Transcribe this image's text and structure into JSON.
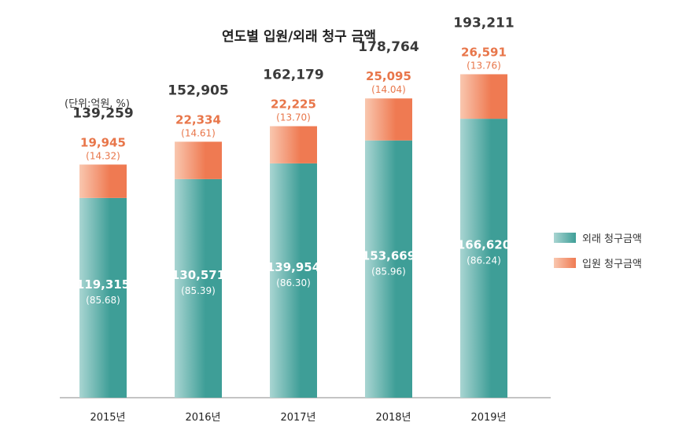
{
  "title": "연도별 입원/외래 청구 금액",
  "unit_note": "(단위:억원, %)",
  "colors": {
    "outpatient": "#3e9e97",
    "outpatient_light": "#a9d5d2",
    "inpatient": "#ef7a52",
    "inpatient_light": "#f9c7af",
    "total_text": "#3a3a3a",
    "inpatient_text": "#e8764a",
    "axis": "#888888"
  },
  "chart_data": {
    "type": "bar",
    "stacked": true,
    "categories": [
      "2015년",
      "2016년",
      "2017년",
      "2018년",
      "2019년"
    ],
    "totals": [
      139259,
      152905,
      162179,
      178764,
      193211
    ],
    "total_labels": [
      "139,259",
      "152,905",
      "162,179",
      "178,764",
      "193,211"
    ],
    "series": [
      {
        "name": "외래 청구금액",
        "values": [
          119315,
          130571,
          139954,
          153669,
          166620
        ],
        "labels": [
          "119,315",
          "130,571",
          "139,954",
          "153,669",
          "166,620"
        ],
        "pct_labels": [
          "(85.68)",
          "(85.39)",
          "(86.30)",
          "(85.96)",
          "(86.24)"
        ]
      },
      {
        "name": "입원 청구금액",
        "values": [
          19945,
          22334,
          22225,
          25095,
          26591
        ],
        "labels": [
          "19,945",
          "22,334",
          "22,225",
          "25,095",
          "26,591"
        ],
        "pct_labels": [
          "(14.32)",
          "(14.61)",
          "(13.70)",
          "(14.04)",
          "(13.76)"
        ]
      }
    ],
    "ylim": [
      0,
      200000
    ],
    "legend_position": "right"
  }
}
